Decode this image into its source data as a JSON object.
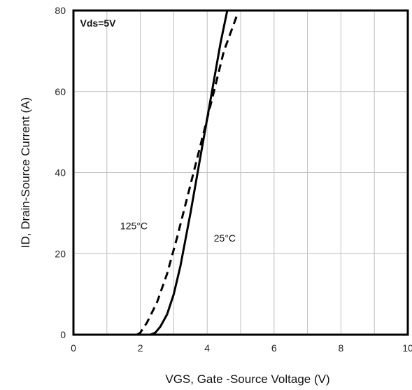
{
  "chart_data": {
    "type": "line",
    "title": "",
    "xlabel": "VGS, Gate -Source Voltage (V)",
    "ylabel": "ID, Drain-Source Current (A)",
    "xlim": [
      0,
      10
    ],
    "ylim": [
      0,
      80
    ],
    "xticks": [
      0,
      2,
      4,
      6,
      8,
      10
    ],
    "xtick_labels": [
      "0",
      "2",
      "4",
      "6",
      "8",
      "10"
    ],
    "yticks": [
      0,
      20,
      40,
      60,
      80
    ],
    "ytick_labels": [
      "0",
      "20",
      "40",
      "60",
      "80"
    ],
    "grid": true,
    "annotations": [
      {
        "text": "Vds=5V",
        "x": 0.2,
        "y": 76,
        "bold": true
      },
      {
        "text": "125°C",
        "x": 1.4,
        "y": 26
      },
      {
        "text": "25°C",
        "x": 4.2,
        "y": 23
      }
    ],
    "series": [
      {
        "name": "25°C",
        "style": "solid",
        "x": [
          2.3,
          2.45,
          2.6,
          2.8,
          3.0,
          3.2,
          3.5,
          3.8,
          4.1,
          4.4,
          4.6
        ],
        "y": [
          0,
          0.5,
          2,
          5,
          10,
          17,
          30,
          44,
          58,
          72,
          80
        ]
      },
      {
        "name": "125°C",
        "style": "dashed",
        "x": [
          1.9,
          2.0,
          2.2,
          2.5,
          2.8,
          3.1,
          3.5,
          3.9,
          4.2,
          4.5,
          4.9
        ],
        "y": [
          0,
          0.5,
          3,
          8,
          15,
          24,
          37,
          50,
          60,
          70,
          79
        ]
      }
    ]
  }
}
